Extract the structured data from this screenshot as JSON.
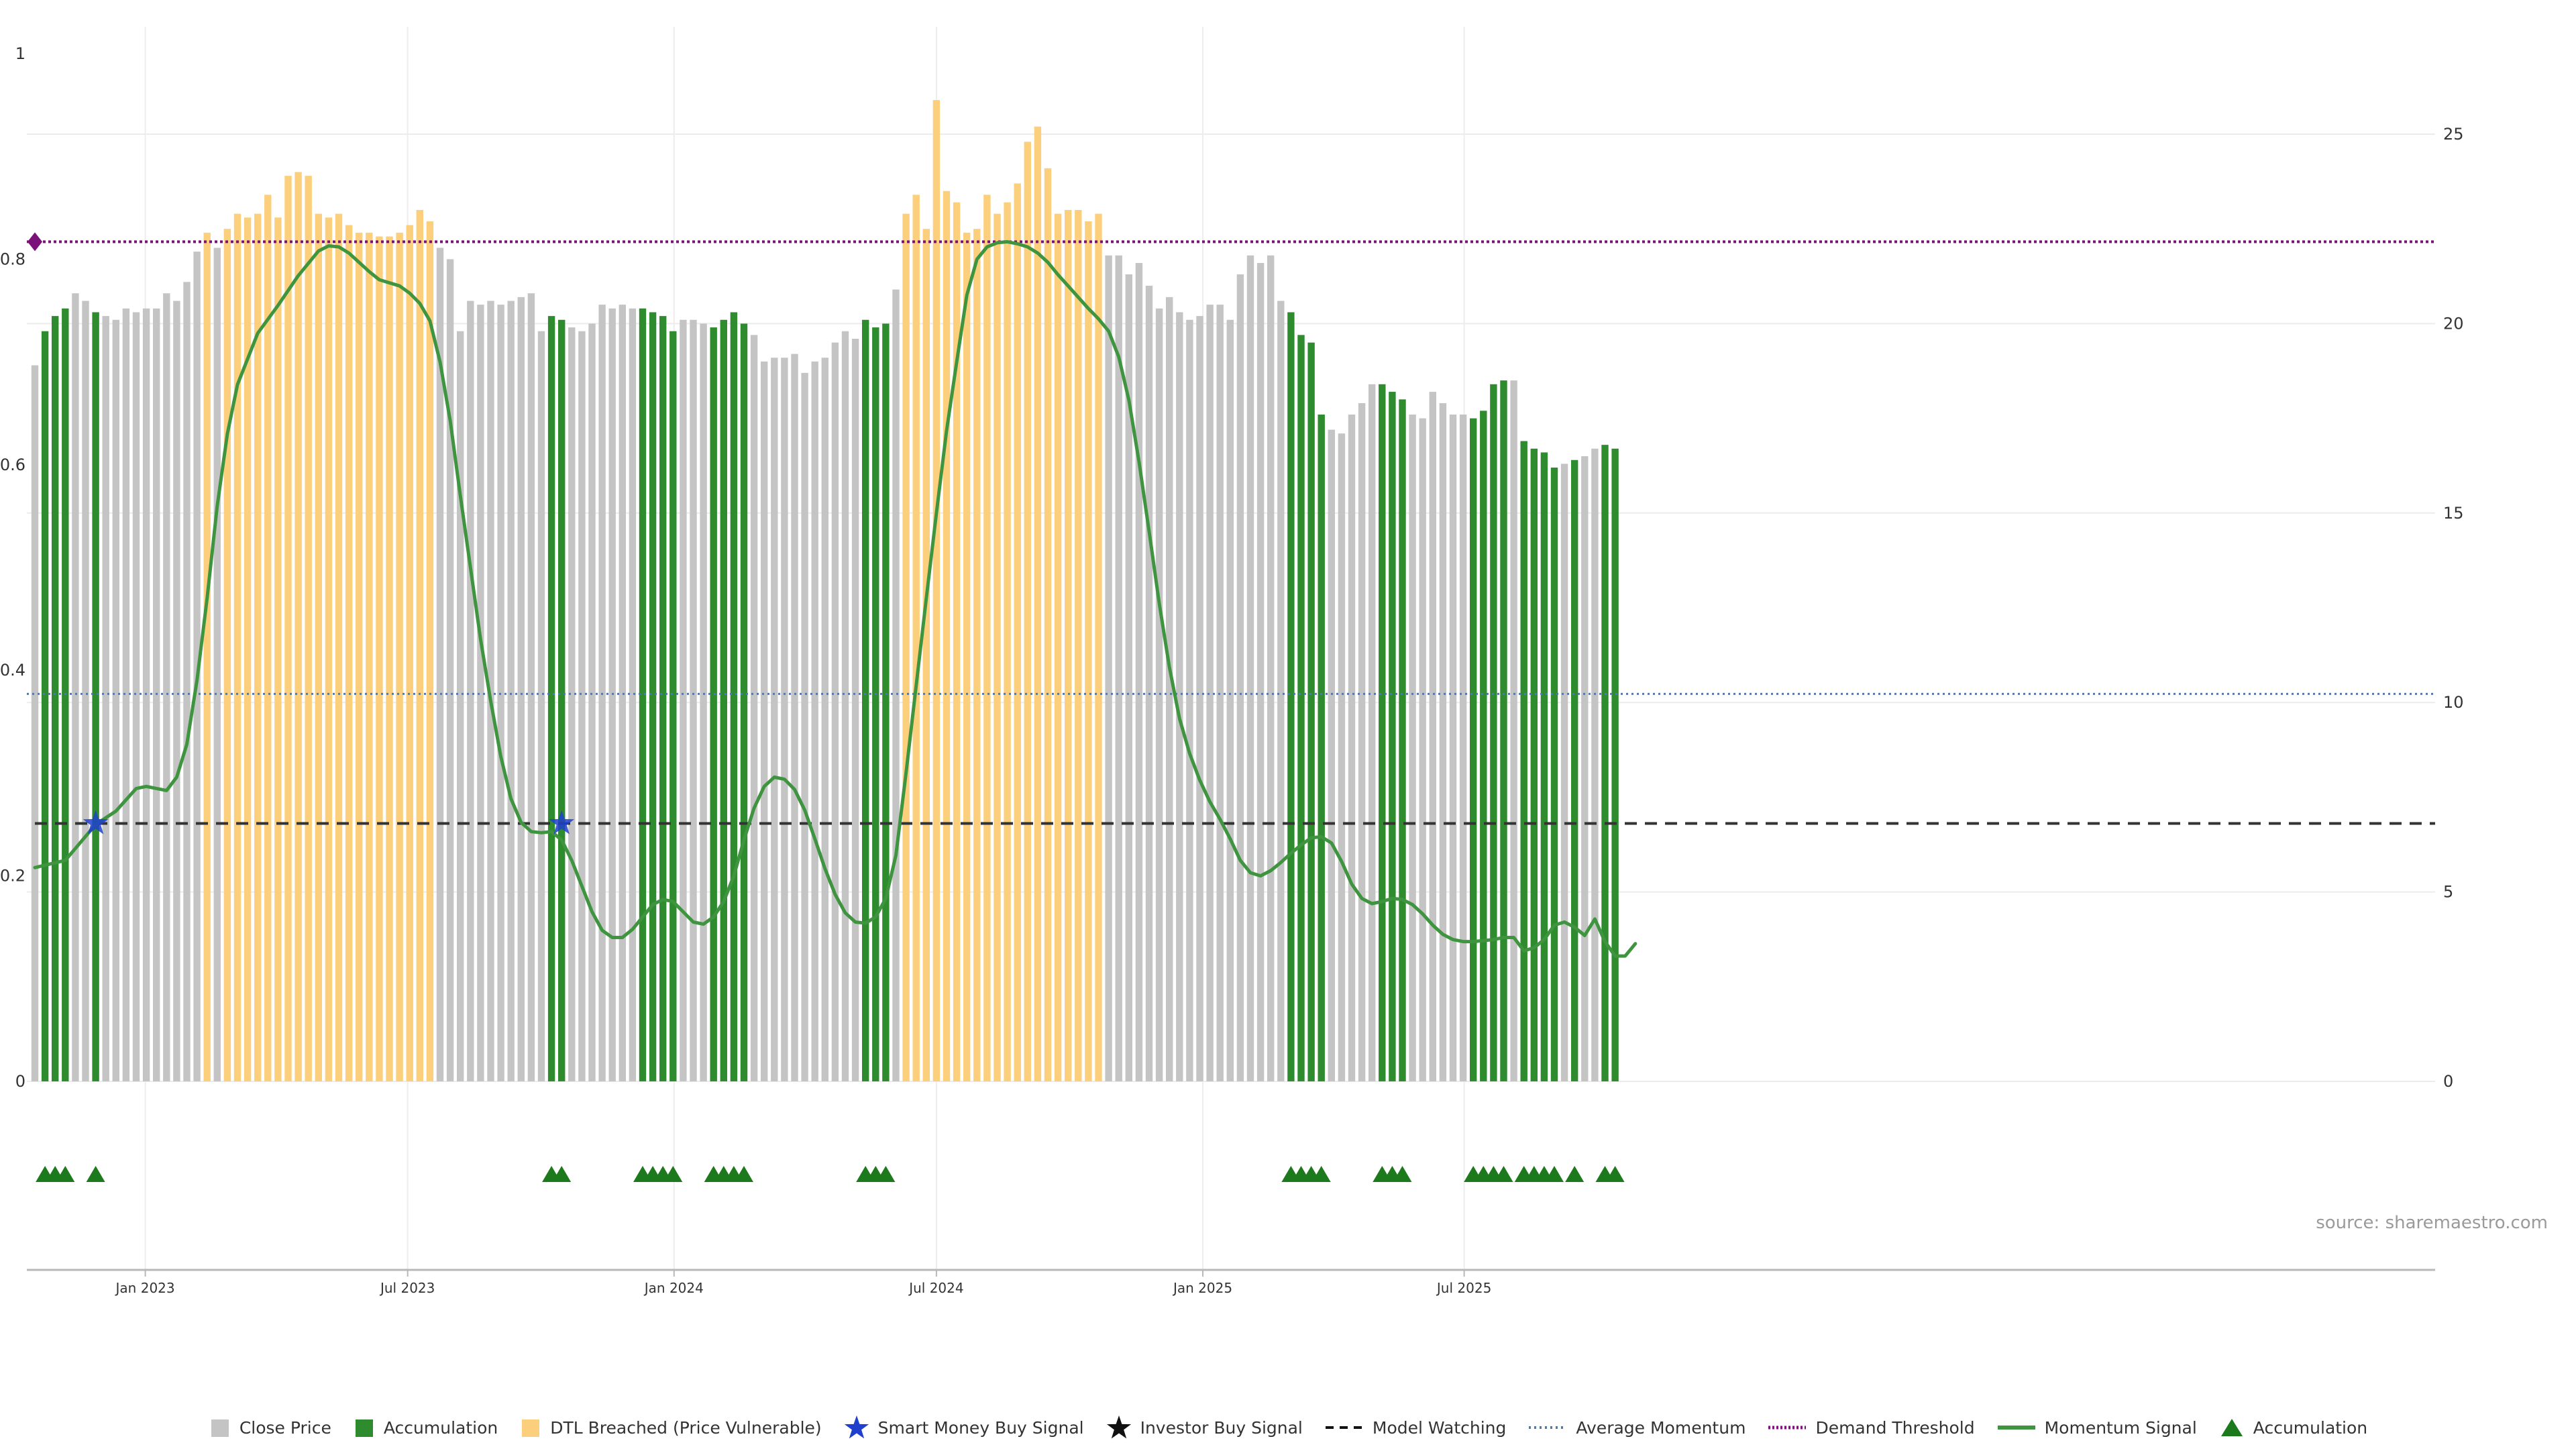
{
  "source_note": "source: sharemaestro.com",
  "colors": {
    "close": "#c4c4c4",
    "accumulation": "#2e8b2e",
    "dtl": "#fbcf7c",
    "momentum": "#3f953f",
    "demand": "#7a127a",
    "avg_momentum": "#4a7bb7",
    "model_watch": "#333333",
    "smart_money": "#1f3fcc",
    "triangle": "#1c7a1c"
  },
  "legend": [
    {
      "key": "close",
      "label": "Close Price",
      "icon": "square"
    },
    {
      "key": "accumulation",
      "label": "Accumulation",
      "icon": "square"
    },
    {
      "key": "dtl",
      "label": "DTL Breached (Price Vulnerable)",
      "icon": "square"
    },
    {
      "key": "smart_money",
      "label": "Smart Money Buy Signal",
      "icon": "star-blue"
    },
    {
      "key": "investor",
      "label": "Investor Buy Signal",
      "icon": "star-black"
    },
    {
      "key": "model_watch",
      "label": "Model Watching",
      "icon": "dash-line"
    },
    {
      "key": "avg_momentum",
      "label": "Average Momentum",
      "icon": "dot-line"
    },
    {
      "key": "demand",
      "label": "Demand Threshold",
      "icon": "dense-dot-line"
    },
    {
      "key": "momentum",
      "label": "Momentum Signal",
      "icon": "solid-line"
    },
    {
      "key": "accum_tri",
      "label": "Accumulation",
      "icon": "triangle"
    }
  ],
  "chart_data": {
    "type": "bar",
    "left_axis": {
      "ticks": [
        "0",
        "0.2",
        "0.4",
        "0.6",
        "0.8",
        "1"
      ],
      "ylim": [
        0,
        1
      ]
    },
    "right_axis": {
      "ticks": [
        "0",
        "5",
        "10",
        "15",
        "20",
        "25"
      ],
      "ylim": [
        0,
        27.2
      ]
    },
    "x_ticks": [
      "Jan 2023",
      "Jul 2023",
      "Jan 2024",
      "Jul 2024",
      "Jan 2025",
      "Jul 2025"
    ],
    "x_tick_weeks": [
      10.9,
      36.8,
      63.1,
      89.0,
      115.3,
      141.1
    ],
    "grid": true,
    "bars": [
      {
        "v": 18.9,
        "t": "c"
      },
      {
        "v": 19.8,
        "t": "a"
      },
      {
        "v": 20.2,
        "t": "a"
      },
      {
        "v": 20.4,
        "t": "a"
      },
      {
        "v": 20.8,
        "t": "c"
      },
      {
        "v": 20.6,
        "t": "c"
      },
      {
        "v": 20.3,
        "t": "a"
      },
      {
        "v": 20.2,
        "t": "c"
      },
      {
        "v": 20.1,
        "t": "c"
      },
      {
        "v": 20.4,
        "t": "c"
      },
      {
        "v": 20.3,
        "t": "c"
      },
      {
        "v": 20.4,
        "t": "c"
      },
      {
        "v": 20.4,
        "t": "c"
      },
      {
        "v": 20.8,
        "t": "c"
      },
      {
        "v": 20.6,
        "t": "c"
      },
      {
        "v": 21.1,
        "t": "c"
      },
      {
        "v": 21.9,
        "t": "c"
      },
      {
        "v": 22.4,
        "t": "d"
      },
      {
        "v": 22.0,
        "t": "c"
      },
      {
        "v": 22.5,
        "t": "d"
      },
      {
        "v": 22.9,
        "t": "d"
      },
      {
        "v": 22.8,
        "t": "d"
      },
      {
        "v": 22.9,
        "t": "d"
      },
      {
        "v": 23.4,
        "t": "d"
      },
      {
        "v": 22.8,
        "t": "d"
      },
      {
        "v": 23.9,
        "t": "d"
      },
      {
        "v": 24.0,
        "t": "d"
      },
      {
        "v": 23.9,
        "t": "d"
      },
      {
        "v": 22.9,
        "t": "d"
      },
      {
        "v": 22.8,
        "t": "d"
      },
      {
        "v": 22.9,
        "t": "d"
      },
      {
        "v": 22.6,
        "t": "d"
      },
      {
        "v": 22.4,
        "t": "d"
      },
      {
        "v": 22.4,
        "t": "d"
      },
      {
        "v": 22.3,
        "t": "d"
      },
      {
        "v": 22.3,
        "t": "d"
      },
      {
        "v": 22.4,
        "t": "d"
      },
      {
        "v": 22.6,
        "t": "d"
      },
      {
        "v": 23.0,
        "t": "d"
      },
      {
        "v": 22.7,
        "t": "d"
      },
      {
        "v": 22.0,
        "t": "c"
      },
      {
        "v": 21.7,
        "t": "c"
      },
      {
        "v": 19.8,
        "t": "c"
      },
      {
        "v": 20.6,
        "t": "c"
      },
      {
        "v": 20.5,
        "t": "c"
      },
      {
        "v": 20.6,
        "t": "c"
      },
      {
        "v": 20.5,
        "t": "c"
      },
      {
        "v": 20.6,
        "t": "c"
      },
      {
        "v": 20.7,
        "t": "c"
      },
      {
        "v": 20.8,
        "t": "c"
      },
      {
        "v": 19.8,
        "t": "c"
      },
      {
        "v": 20.2,
        "t": "a"
      },
      {
        "v": 20.1,
        "t": "a"
      },
      {
        "v": 19.9,
        "t": "c"
      },
      {
        "v": 19.8,
        "t": "c"
      },
      {
        "v": 20.0,
        "t": "c"
      },
      {
        "v": 20.5,
        "t": "c"
      },
      {
        "v": 20.4,
        "t": "c"
      },
      {
        "v": 20.5,
        "t": "c"
      },
      {
        "v": 20.4,
        "t": "c"
      },
      {
        "v": 20.4,
        "t": "a"
      },
      {
        "v": 20.3,
        "t": "a"
      },
      {
        "v": 20.2,
        "t": "a"
      },
      {
        "v": 19.8,
        "t": "a"
      },
      {
        "v": 20.1,
        "t": "c"
      },
      {
        "v": 20.1,
        "t": "c"
      },
      {
        "v": 20.0,
        "t": "c"
      },
      {
        "v": 19.9,
        "t": "a"
      },
      {
        "v": 20.1,
        "t": "a"
      },
      {
        "v": 20.3,
        "t": "a"
      },
      {
        "v": 20.0,
        "t": "a"
      },
      {
        "v": 19.7,
        "t": "c"
      },
      {
        "v": 19.0,
        "t": "c"
      },
      {
        "v": 19.1,
        "t": "c"
      },
      {
        "v": 19.1,
        "t": "c"
      },
      {
        "v": 19.2,
        "t": "c"
      },
      {
        "v": 18.7,
        "t": "c"
      },
      {
        "v": 19.0,
        "t": "c"
      },
      {
        "v": 19.1,
        "t": "c"
      },
      {
        "v": 19.5,
        "t": "c"
      },
      {
        "v": 19.8,
        "t": "c"
      },
      {
        "v": 19.6,
        "t": "c"
      },
      {
        "v": 20.1,
        "t": "a"
      },
      {
        "v": 19.9,
        "t": "a"
      },
      {
        "v": 20.0,
        "t": "a"
      },
      {
        "v": 20.9,
        "t": "c"
      },
      {
        "v": 22.9,
        "t": "d"
      },
      {
        "v": 23.4,
        "t": "d"
      },
      {
        "v": 22.5,
        "t": "d"
      },
      {
        "v": 25.9,
        "t": "d"
      },
      {
        "v": 23.5,
        "t": "d"
      },
      {
        "v": 23.2,
        "t": "d"
      },
      {
        "v": 22.4,
        "t": "d"
      },
      {
        "v": 22.5,
        "t": "d"
      },
      {
        "v": 23.4,
        "t": "d"
      },
      {
        "v": 22.9,
        "t": "d"
      },
      {
        "v": 23.2,
        "t": "d"
      },
      {
        "v": 23.7,
        "t": "d"
      },
      {
        "v": 24.8,
        "t": "d"
      },
      {
        "v": 25.2,
        "t": "d"
      },
      {
        "v": 24.1,
        "t": "d"
      },
      {
        "v": 22.9,
        "t": "d"
      },
      {
        "v": 23.0,
        "t": "d"
      },
      {
        "v": 23.0,
        "t": "d"
      },
      {
        "v": 22.7,
        "t": "d"
      },
      {
        "v": 22.9,
        "t": "d"
      },
      {
        "v": 21.8,
        "t": "c"
      },
      {
        "v": 21.8,
        "t": "c"
      },
      {
        "v": 21.3,
        "t": "c"
      },
      {
        "v": 21.6,
        "t": "c"
      },
      {
        "v": 21.0,
        "t": "c"
      },
      {
        "v": 20.4,
        "t": "c"
      },
      {
        "v": 20.7,
        "t": "c"
      },
      {
        "v": 20.3,
        "t": "c"
      },
      {
        "v": 20.1,
        "t": "c"
      },
      {
        "v": 20.2,
        "t": "c"
      },
      {
        "v": 20.5,
        "t": "c"
      },
      {
        "v": 20.5,
        "t": "c"
      },
      {
        "v": 20.1,
        "t": "c"
      },
      {
        "v": 21.3,
        "t": "c"
      },
      {
        "v": 21.8,
        "t": "c"
      },
      {
        "v": 21.6,
        "t": "c"
      },
      {
        "v": 21.8,
        "t": "c"
      },
      {
        "v": 20.6,
        "t": "c"
      },
      {
        "v": 20.3,
        "t": "a"
      },
      {
        "v": 19.7,
        "t": "a"
      },
      {
        "v": 19.5,
        "t": "a"
      },
      {
        "v": 17.6,
        "t": "a"
      },
      {
        "v": 17.2,
        "t": "c"
      },
      {
        "v": 17.1,
        "t": "c"
      },
      {
        "v": 17.6,
        "t": "c"
      },
      {
        "v": 17.9,
        "t": "c"
      },
      {
        "v": 18.4,
        "t": "c"
      },
      {
        "v": 18.4,
        "t": "a"
      },
      {
        "v": 18.2,
        "t": "a"
      },
      {
        "v": 18.0,
        "t": "a"
      },
      {
        "v": 17.6,
        "t": "c"
      },
      {
        "v": 17.5,
        "t": "c"
      },
      {
        "v": 18.2,
        "t": "c"
      },
      {
        "v": 17.9,
        "t": "c"
      },
      {
        "v": 17.6,
        "t": "c"
      },
      {
        "v": 17.6,
        "t": "c"
      },
      {
        "v": 17.5,
        "t": "a"
      },
      {
        "v": 17.7,
        "t": "a"
      },
      {
        "v": 18.4,
        "t": "a"
      },
      {
        "v": 18.5,
        "t": "a"
      },
      {
        "v": 18.5,
        "t": "c"
      },
      {
        "v": 16.9,
        "t": "a"
      },
      {
        "v": 16.7,
        "t": "a"
      },
      {
        "v": 16.6,
        "t": "a"
      },
      {
        "v": 16.2,
        "t": "a"
      },
      {
        "v": 16.3,
        "t": "c"
      },
      {
        "v": 16.4,
        "t": "a"
      },
      {
        "v": 16.5,
        "t": "c"
      },
      {
        "v": 16.7,
        "t": "c"
      },
      {
        "v": 16.8,
        "t": "a"
      },
      {
        "v": 16.7,
        "t": "a"
      }
    ],
    "momentum": [
      {
        "w": 0,
        "v": 0.208
      },
      {
        "w": 3,
        "v": 0.215
      },
      {
        "w": 6,
        "v": 0.25
      },
      {
        "w": 8,
        "v": 0.263
      },
      {
        "w": 10,
        "v": 0.285
      },
      {
        "w": 11,
        "v": 0.287
      },
      {
        "w": 13,
        "v": 0.283
      },
      {
        "w": 14,
        "v": 0.296
      },
      {
        "w": 15,
        "v": 0.328
      },
      {
        "w": 16,
        "v": 0.39
      },
      {
        "w": 17,
        "v": 0.47
      },
      {
        "w": 18,
        "v": 0.56
      },
      {
        "w": 19,
        "v": 0.63
      },
      {
        "w": 20,
        "v": 0.678
      },
      {
        "w": 22,
        "v": 0.728
      },
      {
        "w": 24,
        "v": 0.755
      },
      {
        "w": 26,
        "v": 0.784
      },
      {
        "w": 28,
        "v": 0.808
      },
      {
        "w": 29,
        "v": 0.813
      },
      {
        "w": 30,
        "v": 0.812
      },
      {
        "w": 31,
        "v": 0.806
      },
      {
        "w": 32,
        "v": 0.797
      },
      {
        "w": 33,
        "v": 0.788
      },
      {
        "w": 34,
        "v": 0.78
      },
      {
        "w": 36,
        "v": 0.774
      },
      {
        "w": 37,
        "v": 0.767
      },
      {
        "w": 38,
        "v": 0.757
      },
      {
        "w": 39,
        "v": 0.74
      },
      {
        "w": 40,
        "v": 0.7
      },
      {
        "w": 41,
        "v": 0.643
      },
      {
        "w": 42,
        "v": 0.57
      },
      {
        "w": 43,
        "v": 0.5
      },
      {
        "w": 44,
        "v": 0.43
      },
      {
        "w": 45,
        "v": 0.37
      },
      {
        "w": 46,
        "v": 0.316
      },
      {
        "w": 47,
        "v": 0.275
      },
      {
        "w": 48,
        "v": 0.252
      },
      {
        "w": 49,
        "v": 0.243
      },
      {
        "w": 50,
        "v": 0.242
      },
      {
        "w": 51,
        "v": 0.243
      },
      {
        "w": 52,
        "v": 0.235
      },
      {
        "w": 53,
        "v": 0.215
      },
      {
        "w": 54,
        "v": 0.19
      },
      {
        "w": 55,
        "v": 0.165
      },
      {
        "w": 56,
        "v": 0.147
      },
      {
        "w": 57,
        "v": 0.14
      },
      {
        "w": 58,
        "v": 0.14
      },
      {
        "w": 59,
        "v": 0.148
      },
      {
        "w": 60,
        "v": 0.16
      },
      {
        "w": 61,
        "v": 0.172
      },
      {
        "w": 62,
        "v": 0.177
      },
      {
        "w": 63,
        "v": 0.175
      },
      {
        "w": 64,
        "v": 0.165
      },
      {
        "w": 65,
        "v": 0.155
      },
      {
        "w": 66,
        "v": 0.153
      },
      {
        "w": 67,
        "v": 0.16
      },
      {
        "w": 68,
        "v": 0.175
      },
      {
        "w": 69,
        "v": 0.2
      },
      {
        "w": 70,
        "v": 0.235
      },
      {
        "w": 71,
        "v": 0.266
      },
      {
        "w": 72,
        "v": 0.287
      },
      {
        "w": 73,
        "v": 0.296
      },
      {
        "w": 74,
        "v": 0.294
      },
      {
        "w": 75,
        "v": 0.284
      },
      {
        "w": 76,
        "v": 0.264
      },
      {
        "w": 77,
        "v": 0.236
      },
      {
        "w": 78,
        "v": 0.207
      },
      {
        "w": 79,
        "v": 0.182
      },
      {
        "w": 80,
        "v": 0.164
      },
      {
        "w": 81,
        "v": 0.155
      },
      {
        "w": 82,
        "v": 0.154
      },
      {
        "w": 83,
        "v": 0.16
      },
      {
        "w": 84,
        "v": 0.178
      },
      {
        "w": 85,
        "v": 0.22
      },
      {
        "w": 86,
        "v": 0.3
      },
      {
        "w": 87,
        "v": 0.385
      },
      {
        "w": 88,
        "v": 0.47
      },
      {
        "w": 89,
        "v": 0.553
      },
      {
        "w": 90,
        "v": 0.633
      },
      {
        "w": 91,
        "v": 0.7
      },
      {
        "w": 92,
        "v": 0.765
      },
      {
        "w": 93,
        "v": 0.8
      },
      {
        "w": 94,
        "v": 0.812
      },
      {
        "w": 95,
        "v": 0.816
      },
      {
        "w": 96,
        "v": 0.817
      },
      {
        "w": 97,
        "v": 0.815
      },
      {
        "w": 98,
        "v": 0.812
      },
      {
        "w": 99,
        "v": 0.806
      },
      {
        "w": 100,
        "v": 0.797
      },
      {
        "w": 101,
        "v": 0.785
      },
      {
        "w": 102,
        "v": 0.774
      },
      {
        "w": 103,
        "v": 0.763
      },
      {
        "w": 104,
        "v": 0.752
      },
      {
        "w": 105,
        "v": 0.742
      },
      {
        "w": 106,
        "v": 0.73
      },
      {
        "w": 107,
        "v": 0.705
      },
      {
        "w": 108,
        "v": 0.663
      },
      {
        "w": 109,
        "v": 0.603
      },
      {
        "w": 110,
        "v": 0.535
      },
      {
        "w": 111,
        "v": 0.465
      },
      {
        "w": 112,
        "v": 0.403
      },
      {
        "w": 113,
        "v": 0.353
      },
      {
        "w": 114,
        "v": 0.319
      },
      {
        "w": 115,
        "v": 0.293
      },
      {
        "w": 116,
        "v": 0.272
      },
      {
        "w": 117,
        "v": 0.255
      },
      {
        "w": 118,
        "v": 0.236
      },
      {
        "w": 119,
        "v": 0.215
      },
      {
        "w": 120,
        "v": 0.203
      },
      {
        "w": 121,
        "v": 0.2
      },
      {
        "w": 122,
        "v": 0.205
      },
      {
        "w": 123,
        "v": 0.213
      },
      {
        "w": 124,
        "v": 0.222
      },
      {
        "w": 125,
        "v": 0.23
      },
      {
        "w": 126,
        "v": 0.237
      },
      {
        "w": 127,
        "v": 0.238
      },
      {
        "w": 128,
        "v": 0.232
      },
      {
        "w": 129,
        "v": 0.214
      },
      {
        "w": 130,
        "v": 0.192
      },
      {
        "w": 131,
        "v": 0.178
      },
      {
        "w": 132,
        "v": 0.173
      },
      {
        "w": 133,
        "v": 0.175
      },
      {
        "w": 134,
        "v": 0.178
      },
      {
        "w": 135,
        "v": 0.177
      },
      {
        "w": 136,
        "v": 0.172
      },
      {
        "w": 137,
        "v": 0.163
      },
      {
        "w": 138,
        "v": 0.152
      },
      {
        "w": 139,
        "v": 0.143
      },
      {
        "w": 140,
        "v": 0.138
      },
      {
        "w": 141,
        "v": 0.136
      },
      {
        "w": 142,
        "v": 0.136
      },
      {
        "w": 143,
        "v": 0.137
      },
      {
        "w": 144,
        "v": 0.138
      },
      {
        "w": 145,
        "v": 0.14
      },
      {
        "w": 146,
        "v": 0.14
      },
      {
        "w": 147,
        "v": 0.127
      },
      {
        "w": 148,
        "v": 0.13
      },
      {
        "w": 149,
        "v": 0.138
      },
      {
        "w": 150,
        "v": 0.152
      },
      {
        "w": 151,
        "v": 0.155
      },
      {
        "w": 152,
        "v": 0.15
      },
      {
        "w": 153,
        "v": 0.142
      },
      {
        "w": 154,
        "v": 0.158
      },
      {
        "w": 155,
        "v": 0.136
      },
      {
        "w": 156,
        "v": 0.122
      },
      {
        "w": 157,
        "v": 0.122
      },
      {
        "w": 158,
        "v": 0.134
      }
    ],
    "demand_threshold": 0.817,
    "avg_momentum": 0.377,
    "model_watching": 0.251,
    "smart_money_signals": [
      {
        "w": 6,
        "v": 0.251
      },
      {
        "w": 52,
        "v": 0.251
      }
    ],
    "accumulation_markers": [
      1,
      2,
      3,
      6,
      51,
      52,
      60,
      61,
      62,
      63,
      67,
      68,
      69,
      70,
      82,
      83,
      84,
      124,
      125,
      126,
      127,
      133,
      134,
      135,
      142,
      143,
      144,
      145,
      147,
      148,
      149,
      150,
      152,
      155,
      156
    ]
  }
}
